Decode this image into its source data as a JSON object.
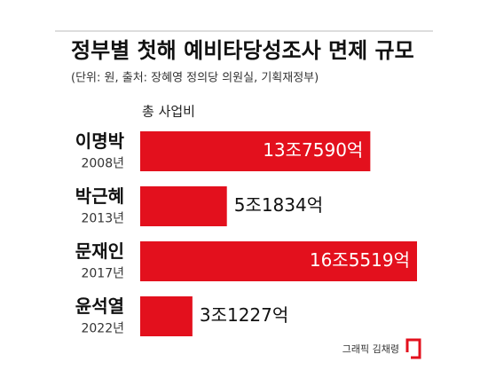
{
  "chart_data": {
    "type": "bar",
    "orientation": "horizontal",
    "title": "정부별 첫해 예비타당성조사 면제 규모",
    "subtitle": "(단위: 원, 출처: 장혜영 정의당 의원실, 기획재정부)",
    "categories": [
      "이명박",
      "박근혜",
      "문재인",
      "윤석열"
    ],
    "category_sublabels": [
      "2008년",
      "2013년",
      "2017년",
      "2022년"
    ],
    "series": [
      {
        "name": "총 사업비",
        "color": "#e3101d",
        "values": [
          13759000000000,
          5183400000000,
          16551900000000,
          3122700000000
        ],
        "value_labels": [
          "13조7590억",
          "5조1834억",
          "16조5519억",
          "3조1227억"
        ]
      }
    ],
    "source": "그래픽 김채령"
  }
}
